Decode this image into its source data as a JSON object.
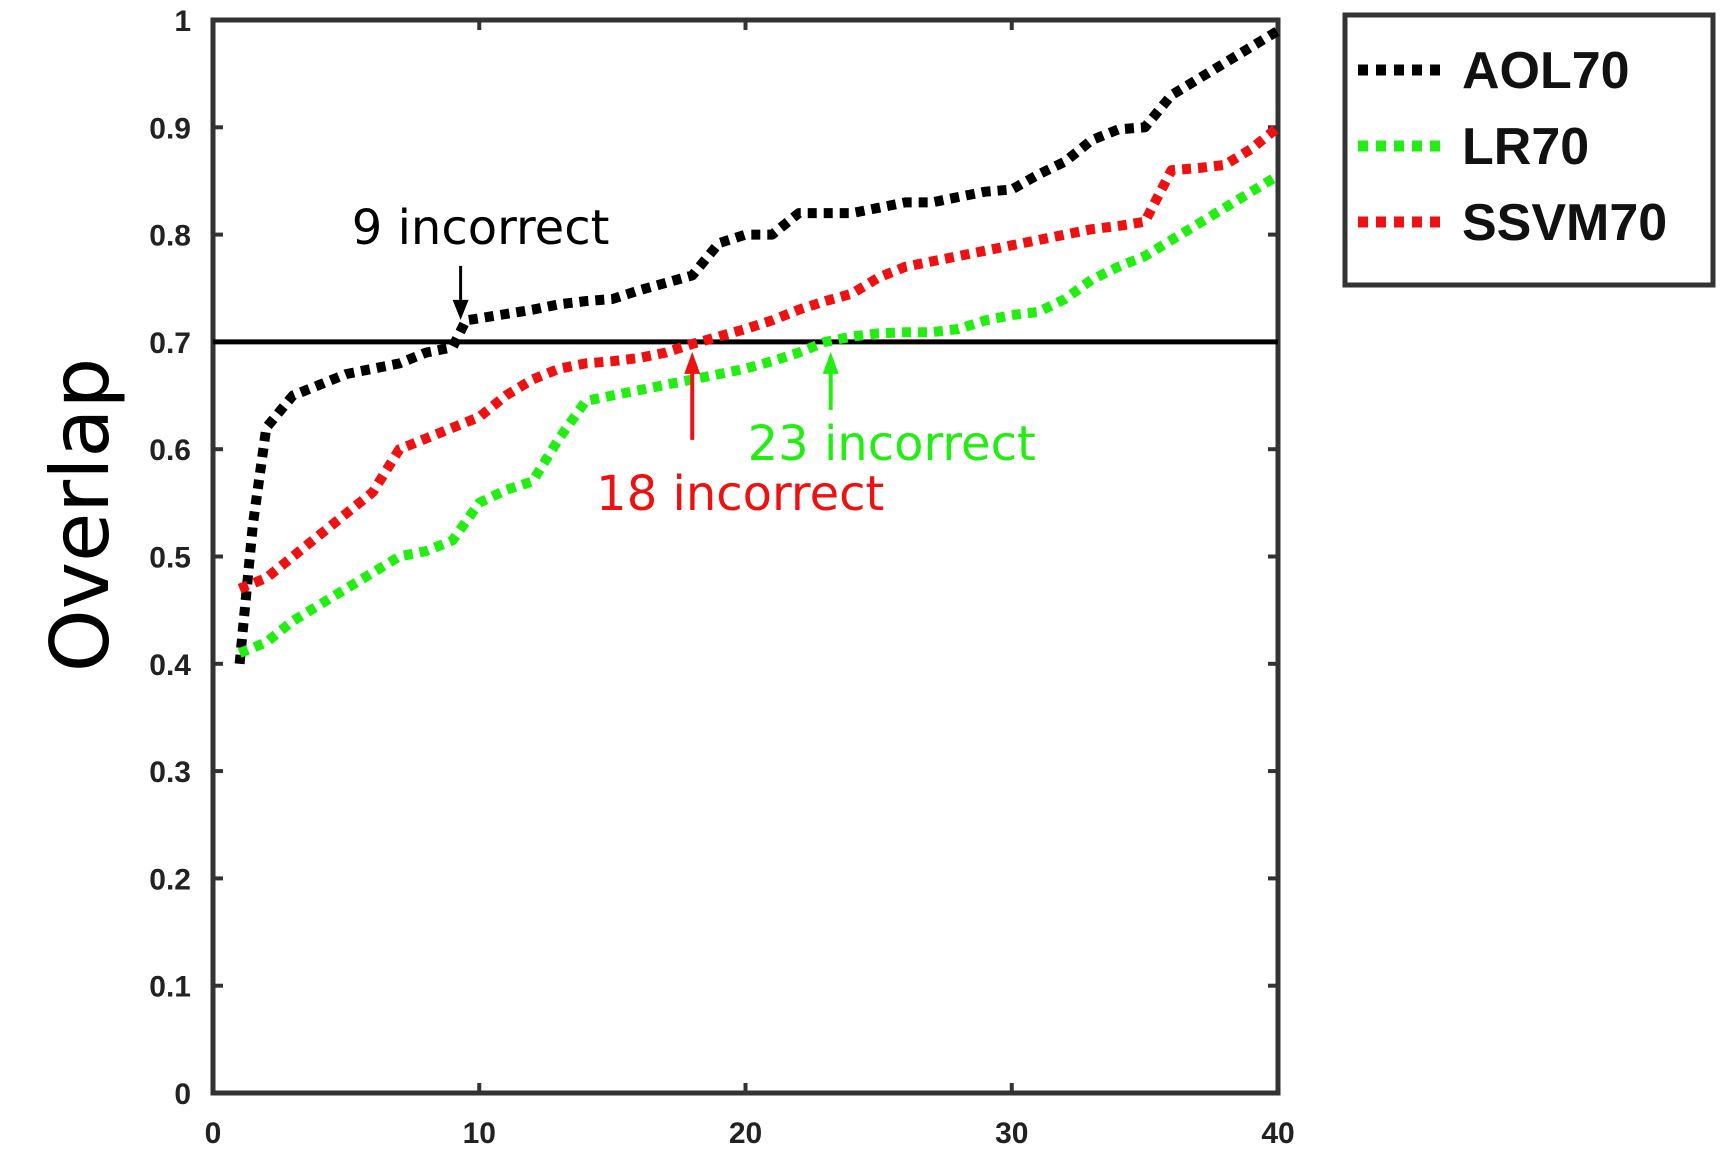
{
  "chart_data": {
    "type": "line",
    "title": "",
    "xlabel": "",
    "ylabel": "Overlap",
    "xlim": [
      0,
      40
    ],
    "ylim": [
      0,
      1
    ],
    "xticks": [
      "0",
      "10",
      "20",
      "30",
      "40"
    ],
    "yticks": [
      "0",
      "0.1",
      "0.2",
      "0.3",
      "0.4",
      "0.5",
      "0.6",
      "0.7",
      "0.8",
      "0.9",
      "1"
    ],
    "grid": false,
    "legend_position": "outside-top-right",
    "threshold": {
      "y": 0.7,
      "color": "#000000"
    },
    "series": [
      {
        "name": "AOL70",
        "color": "#000000",
        "style": "dotted",
        "x": [
          1,
          1.5,
          2,
          3,
          4,
          5,
          6,
          7,
          8,
          9,
          9.5,
          10,
          11,
          12,
          13,
          14,
          15,
          16,
          17,
          18,
          19,
          20,
          21,
          22,
          23,
          24,
          25,
          26,
          27,
          28,
          29,
          30,
          31,
          32,
          33,
          34,
          35,
          36,
          37,
          38,
          39,
          40
        ],
        "y": [
          0.4,
          0.53,
          0.62,
          0.65,
          0.66,
          0.67,
          0.675,
          0.68,
          0.69,
          0.695,
          0.72,
          0.722,
          0.726,
          0.73,
          0.735,
          0.738,
          0.74,
          0.748,
          0.755,
          0.762,
          0.792,
          0.8,
          0.8,
          0.82,
          0.82,
          0.82,
          0.825,
          0.83,
          0.83,
          0.835,
          0.84,
          0.842,
          0.856,
          0.868,
          0.888,
          0.898,
          0.9,
          0.93,
          0.945,
          0.96,
          0.975,
          0.99
        ]
      },
      {
        "name": "LR70",
        "color": "#22ee11",
        "style": "dotted",
        "x": [
          1,
          2,
          3,
          4,
          5,
          6,
          7,
          8,
          9,
          10,
          11,
          12,
          13,
          14,
          15,
          16,
          17,
          18,
          19,
          20,
          21,
          22,
          23,
          24,
          25,
          26,
          27,
          28,
          29,
          30,
          31,
          32,
          33,
          34,
          35,
          36,
          37,
          38,
          39,
          40
        ],
        "y": [
          0.41,
          0.42,
          0.44,
          0.455,
          0.47,
          0.485,
          0.5,
          0.505,
          0.515,
          0.55,
          0.562,
          0.57,
          0.61,
          0.645,
          0.65,
          0.655,
          0.66,
          0.665,
          0.67,
          0.675,
          0.682,
          0.69,
          0.7,
          0.705,
          0.708,
          0.709,
          0.709,
          0.712,
          0.72,
          0.725,
          0.728,
          0.74,
          0.758,
          0.77,
          0.78,
          0.795,
          0.81,
          0.825,
          0.84,
          0.855
        ]
      },
      {
        "name": "SSVM70",
        "color": "#ee1111",
        "style": "dotted",
        "x": [
          1,
          2,
          3,
          4,
          5,
          6,
          7,
          8,
          9,
          10,
          11,
          12,
          13,
          14,
          15,
          16,
          17,
          18,
          19,
          20,
          21,
          22,
          23,
          24,
          25,
          26,
          27,
          28,
          29,
          30,
          31,
          32,
          33,
          34,
          35,
          36,
          37,
          38,
          39,
          40
        ],
        "y": [
          0.47,
          0.48,
          0.5,
          0.52,
          0.54,
          0.56,
          0.6,
          0.61,
          0.62,
          0.63,
          0.65,
          0.665,
          0.675,
          0.68,
          0.682,
          0.685,
          0.69,
          0.698,
          0.705,
          0.712,
          0.72,
          0.73,
          0.738,
          0.745,
          0.76,
          0.77,
          0.775,
          0.78,
          0.785,
          0.79,
          0.795,
          0.8,
          0.805,
          0.808,
          0.812,
          0.86,
          0.862,
          0.865,
          0.88,
          0.9
        ]
      }
    ],
    "annotations": [
      {
        "text": "9 incorrect",
        "color": "#000000",
        "x": 9.3,
        "y": 0.7,
        "arrow": "down"
      },
      {
        "text": "18 incorrect",
        "color": "#ee1111",
        "x": 18,
        "y": 0.7,
        "arrow": "up"
      },
      {
        "text": "23 incorrect",
        "color": "#22ee11",
        "x": 23.2,
        "y": 0.7,
        "arrow": "up"
      }
    ]
  }
}
